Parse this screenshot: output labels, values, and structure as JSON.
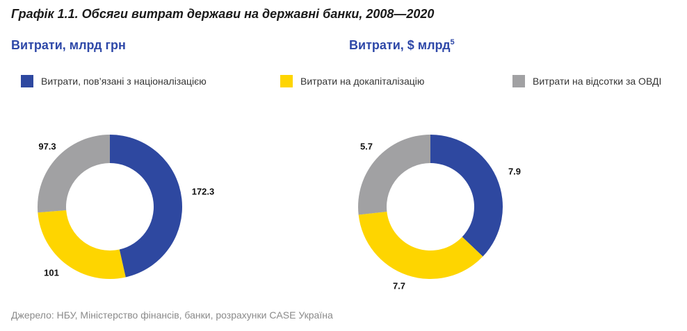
{
  "title": "Графік 1.1. Обсяги витрат держави на державні банки, 2008—2020",
  "source": "Джерело: НБУ, Міністерство фінансів, банки, розрахунки CASE Україна",
  "colors": {
    "nationalization": "#2e48a0",
    "recapitalization": "#fed500",
    "ovdi_interest": "#a1a1a3",
    "subtitle": "#2e48a8"
  },
  "legend": [
    {
      "label": "Витрати, пов’язані з націоналізацією",
      "color": "#2e48a0"
    },
    {
      "label": "Витрати на докапіталізацію",
      "color": "#fed500"
    },
    {
      "label": "Витрати на відсотки за ОВДІ",
      "color": "#a1a1a3"
    }
  ],
  "chart_data": [
    {
      "type": "pie",
      "subtitle": "Витрати, млрд грн",
      "subtitle_sup": "",
      "categories": [
        "Витрати, пов’язані з націоналізацією",
        "Витрати на докапіталізацію",
        "Витрати на відсотки за ОВДІ"
      ],
      "values": [
        172.3,
        101,
        97.3
      ],
      "data_labels": [
        "172.3",
        "101",
        "97.3"
      ],
      "colors": [
        "#2e48a0",
        "#fed500",
        "#a1a1a3"
      ],
      "donut": true
    },
    {
      "type": "pie",
      "subtitle": "Витрати, $ млрд",
      "subtitle_sup": "5",
      "categories": [
        "Витрати, пов’язані з націоналізацією",
        "Витрати на докапіталізацію",
        "Витрати на відсотки за ОВДІ"
      ],
      "values": [
        7.9,
        7.7,
        5.7
      ],
      "data_labels": [
        "7.9",
        "7.7",
        "5.7"
      ],
      "colors": [
        "#2e48a0",
        "#fed500",
        "#a1a1a3"
      ],
      "donut": true
    }
  ]
}
